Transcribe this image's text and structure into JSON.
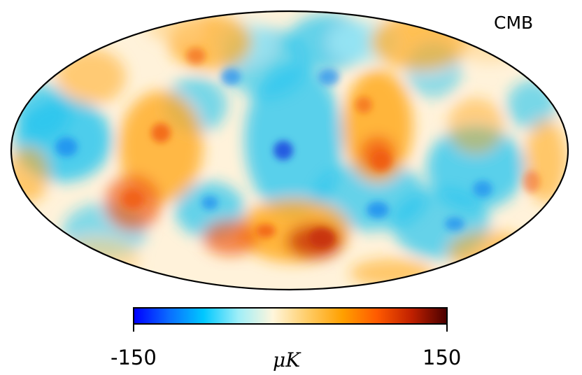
{
  "map": {
    "title": "CMB",
    "projection": "mollweide",
    "colorbar": {
      "min_label": "-150",
      "max_label": "150",
      "unit_label": "μK",
      "min": -150,
      "max": 150,
      "colormap": [
        "#0000ff",
        "#0a6cff",
        "#00c8ff",
        "#9eeef8",
        "#fff6dc",
        "#ffcc66",
        "#ffa000",
        "#ff5a00",
        "#c02000",
        "#4b0000"
      ]
    }
  }
}
